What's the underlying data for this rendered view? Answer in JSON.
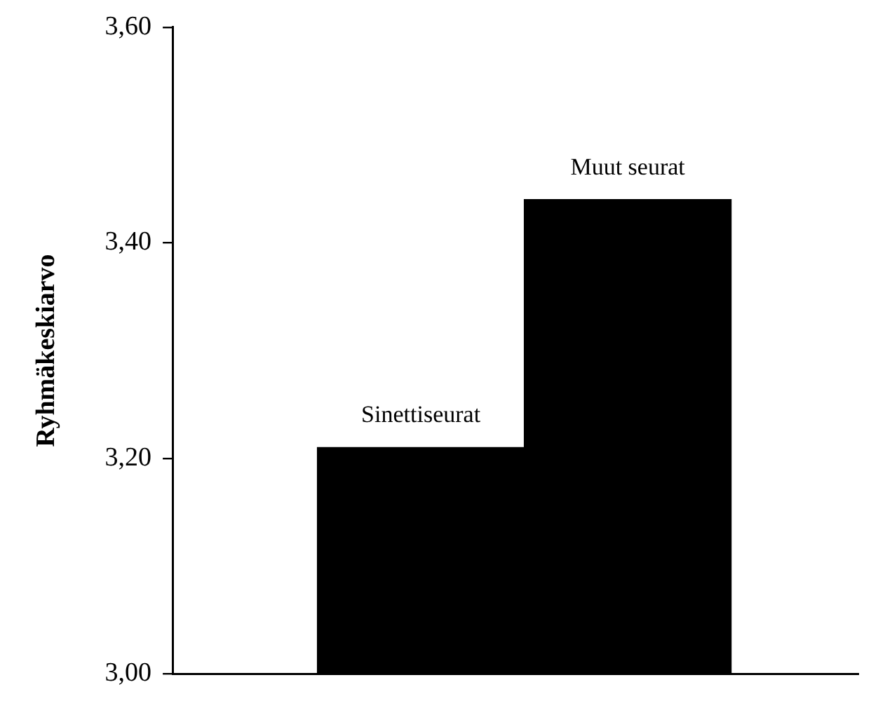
{
  "chart_data": {
    "type": "bar",
    "ylabel": "Ryhmäkeskiarvo",
    "categories": [
      "Sinettiseurat",
      "Muut seurat"
    ],
    "values": [
      3.21,
      3.44
    ],
    "color": "#000000",
    "ylim": [
      3.0,
      3.6
    ],
    "yticks": [
      {
        "value": 3.0,
        "label": "3,00"
      },
      {
        "value": 3.2,
        "label": "3,20"
      },
      {
        "value": 3.4,
        "label": "3,40"
      },
      {
        "value": 3.6,
        "label": "3,60"
      }
    ],
    "grid": false,
    "legend": false,
    "tick_labels": "y"
  }
}
